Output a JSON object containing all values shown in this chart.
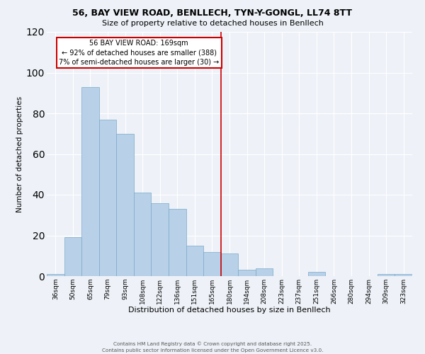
{
  "title_line1": "56, BAY VIEW ROAD, BENLLECH, TYN-Y-GONGL, LL74 8TT",
  "title_line2": "Size of property relative to detached houses in Benllech",
  "xlabel": "Distribution of detached houses by size in Benllech",
  "ylabel": "Number of detached properties",
  "categories": [
    "36sqm",
    "50sqm",
    "65sqm",
    "79sqm",
    "93sqm",
    "108sqm",
    "122sqm",
    "136sqm",
    "151sqm",
    "165sqm",
    "180sqm",
    "194sqm",
    "208sqm",
    "223sqm",
    "237sqm",
    "251sqm",
    "266sqm",
    "280sqm",
    "294sqm",
    "309sqm",
    "323sqm"
  ],
  "values": [
    1,
    19,
    93,
    77,
    70,
    41,
    36,
    33,
    15,
    12,
    11,
    3,
    4,
    0,
    0,
    2,
    0,
    0,
    0,
    1,
    1
  ],
  "bar_color": "#b8d0e8",
  "bar_edge_color": "#7aaac8",
  "background_color": "#eef2f8",
  "grid_color": "#ffffff",
  "vline_x_index": 9,
  "vline_color": "#cc0000",
  "annotation_text": "56 BAY VIEW ROAD: 169sqm\n← 92% of detached houses are smaller (388)\n7% of semi-detached houses are larger (30) →",
  "annotation_box_color": "#cc0000",
  "ylim": [
    0,
    120
  ],
  "yticks": [
    0,
    20,
    40,
    60,
    80,
    100,
    120
  ],
  "footer_line1": "Contains HM Land Registry data © Crown copyright and database right 2025.",
  "footer_line2": "Contains public sector information licensed under the Open Government Licence v3.0."
}
